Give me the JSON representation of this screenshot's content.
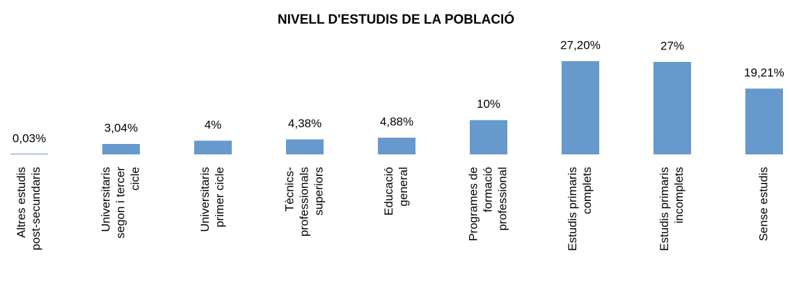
{
  "chart_data": {
    "type": "bar",
    "title": "NIVELL D'ESTUDIS DE LA POBLACIÓ",
    "categories": [
      [
        "Altres estudis",
        "post-secundaris"
      ],
      [
        "Universitaris",
        "segon i tercer",
        "cicle"
      ],
      [
        "Universitaris",
        "primer cicle"
      ],
      [
        "Tècnics-",
        "professionals",
        "superiors"
      ],
      [
        "Educació",
        "general"
      ],
      [
        "Programes de",
        "formació",
        "professional"
      ],
      [
        "Estudis primaris",
        "complets"
      ],
      [
        "Estudis primaris",
        "incomplets"
      ],
      [
        "Sense estudis"
      ]
    ],
    "values": [
      0.03,
      3.04,
      4,
      4.38,
      4.88,
      10,
      27.2,
      27,
      19.21
    ],
    "value_labels": [
      "0,03%",
      "3,04%",
      "4%",
      "4,38%",
      "4,88%",
      "10%",
      "27,20%",
      "27%",
      "19,21%"
    ],
    "color": "#6699cc"
  }
}
